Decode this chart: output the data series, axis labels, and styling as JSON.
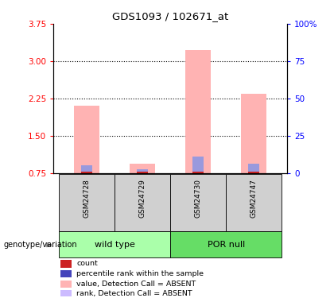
{
  "title": "GDS1093 / 102671_at",
  "samples": [
    "GSM24728",
    "GSM24729",
    "GSM24730",
    "GSM24747"
  ],
  "group_labels": [
    "wild type",
    "POR null"
  ],
  "group_colors": [
    "#aaffaa",
    "#66dd66"
  ],
  "ylim_left": [
    0.75,
    3.75
  ],
  "yticks_left": [
    0.75,
    1.5,
    2.25,
    3.0,
    3.75
  ],
  "yticks_right": [
    0,
    25,
    50,
    75,
    100
  ],
  "pink_bar_values": [
    2.1,
    0.93,
    3.23,
    2.35
  ],
  "blue_bar_values": [
    0.91,
    0.83,
    1.08,
    0.93
  ],
  "red_bar_height": 0.025,
  "pink_color": "#ffb3b3",
  "blue_color": "#9999dd",
  "red_color": "#cc2222",
  "bar_width": 0.45,
  "legend_items": [
    {
      "color": "#cc2222",
      "label": "count"
    },
    {
      "color": "#4444bb",
      "label": "percentile rank within the sample"
    },
    {
      "color": "#ffb3b3",
      "label": "value, Detection Call = ABSENT"
    },
    {
      "color": "#ccbbff",
      "label": "rank, Detection Call = ABSENT"
    }
  ],
  "genotype_label": "genotype/variation"
}
